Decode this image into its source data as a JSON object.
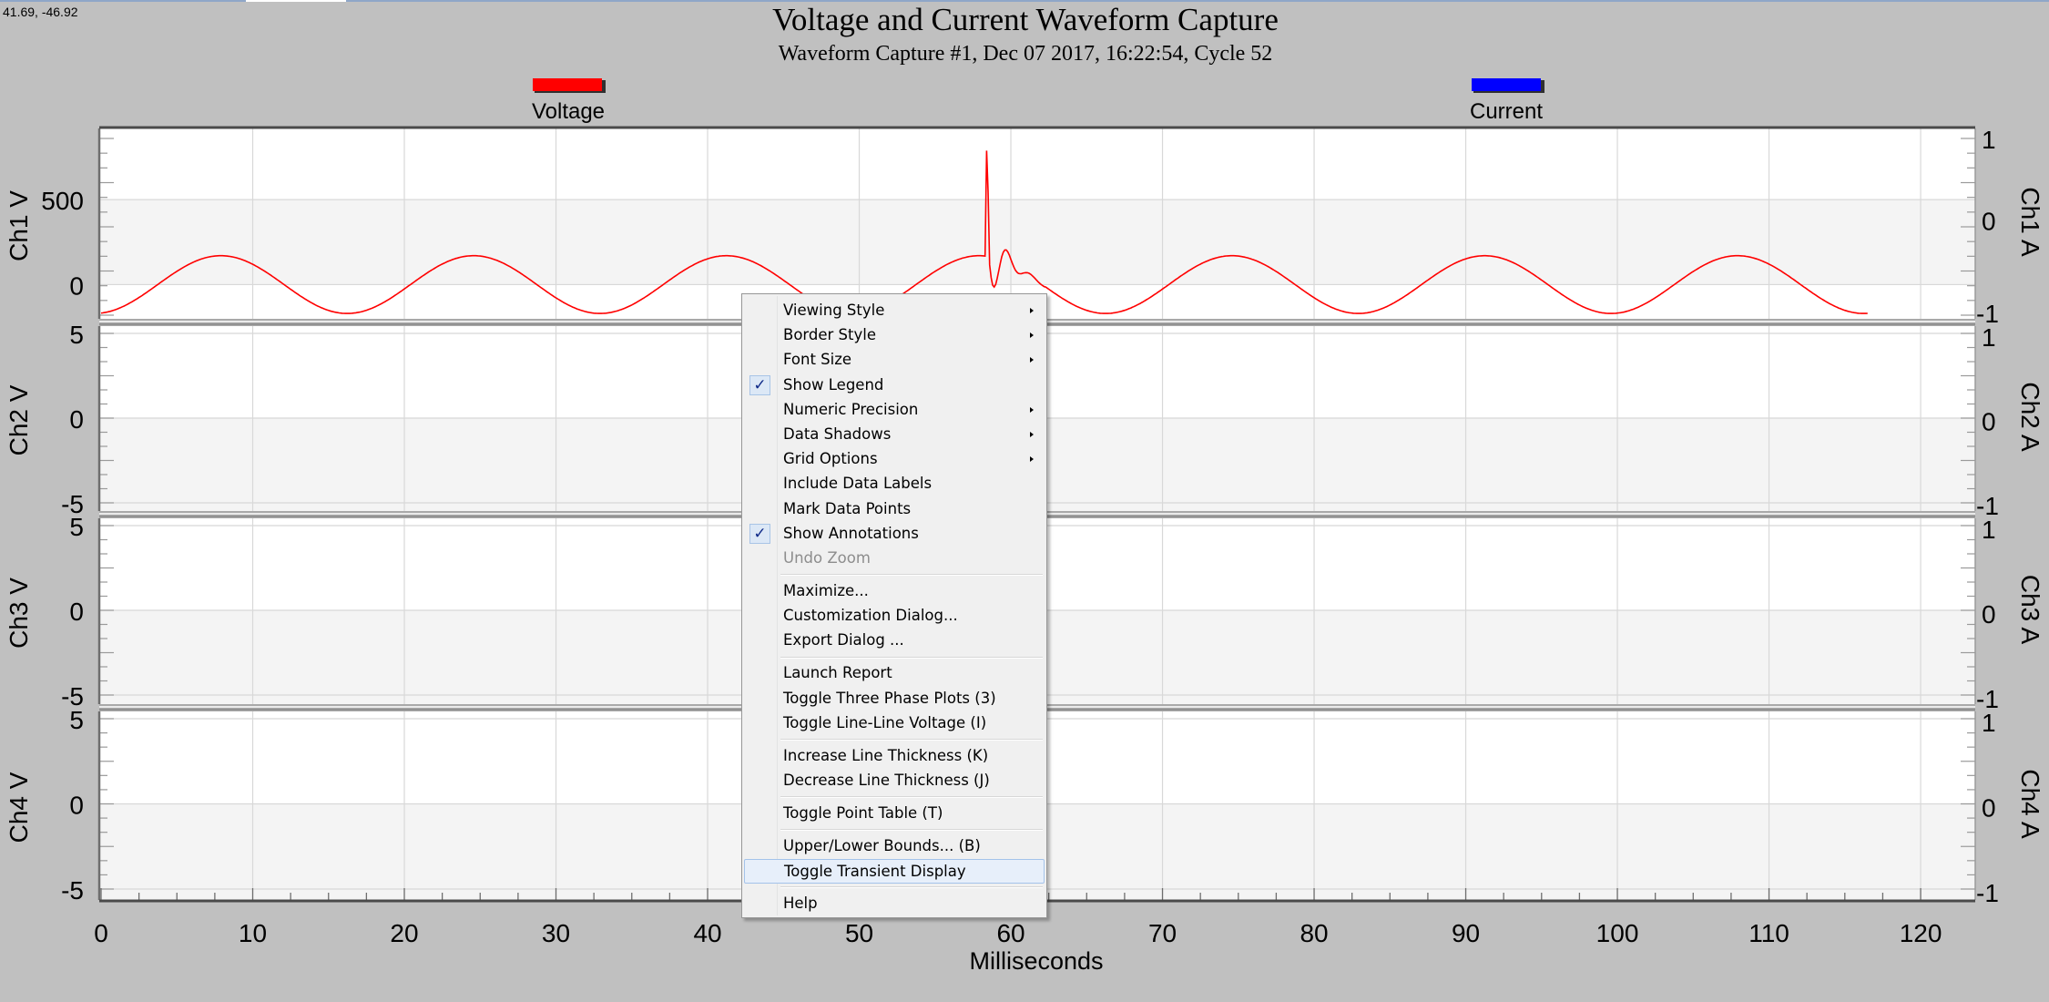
{
  "coords_readout": "41.69, -46.92",
  "colors": {
    "voltage": "#ff0000",
    "current": "#0000ff",
    "background": "#c0c0c0",
    "plot_band_light": "#ffffff",
    "plot_band_dark": "#f4f4f4",
    "grid": "#d8d8d8"
  },
  "chart_data": {
    "type": "line",
    "title": "Voltage and Current Waveform Capture",
    "subtitle": "Waveform Capture #1, Dec 07 2017, 16:22:54,  Cycle 52",
    "xlabel": "Milliseconds",
    "xlim": [
      0,
      123
    ],
    "x_ticks": [
      "0",
      "10",
      "20",
      "30",
      "40",
      "50",
      "60",
      "70",
      "80",
      "90",
      "100",
      "110",
      "120"
    ],
    "legend": [
      {
        "name": "Voltage",
        "color": "#ff0000"
      },
      {
        "name": "Current",
        "color": "#0000ff"
      }
    ],
    "legend_position": "top",
    "grid": true,
    "panels": [
      {
        "left_label": "Ch1 V",
        "right_label": "Ch1 A",
        "ylim": [
          -180,
          860
        ],
        "ytick_labels": [
          "500",
          "0"
        ],
        "ytick_values": [
          500,
          0
        ],
        "right_ylim": [
          -1,
          1
        ],
        "right_ticks": [
          "1",
          "0",
          "-1"
        ]
      },
      {
        "left_label": "Ch2 V",
        "right_label": "Ch2 A",
        "ylim": [
          -5,
          5
        ],
        "ytick_labels": [
          "5",
          "0",
          "-5"
        ],
        "ytick_values": [
          5,
          0,
          -5
        ],
        "right_ylim": [
          -1,
          1
        ],
        "right_ticks": [
          "1",
          "0",
          "-1"
        ]
      },
      {
        "left_label": "Ch3 V",
        "right_label": "Ch3 A",
        "ylim": [
          -5,
          5
        ],
        "ytick_labels": [
          "5",
          "0",
          "-5"
        ],
        "ytick_values": [
          5,
          0,
          -5
        ],
        "right_ylim": [
          -1,
          1
        ],
        "right_ticks": [
          "1",
          "0",
          "-1"
        ]
      },
      {
        "left_label": "Ch4 V",
        "right_label": "Ch4 A",
        "ylim": [
          -5,
          5
        ],
        "ytick_labels": [
          "5",
          "0",
          "-5"
        ],
        "ytick_values": [
          5,
          0,
          -5
        ],
        "right_ylim": [
          -1,
          1
        ],
        "right_ticks": [
          "1",
          "0",
          "-1"
        ]
      }
    ],
    "series": [
      {
        "name": "Voltage",
        "panel": 0,
        "color": "#ff0000",
        "waveform": "sine",
        "x_range_ms": [
          0,
          116.5
        ],
        "period_ms": 16.67,
        "peak_v": 170,
        "first_peak_ms": 7.9,
        "transient": {
          "time_ms": 58.3,
          "peak_v": 820
        }
      }
    ]
  },
  "context_menu": {
    "items": [
      {
        "label": "Viewing Style",
        "submenu": true
      },
      {
        "label": "Border Style",
        "submenu": true
      },
      {
        "label": "Font Size",
        "submenu": true
      },
      {
        "label": "Show Legend",
        "checked": true
      },
      {
        "label": "Numeric Precision",
        "submenu": true
      },
      {
        "label": "Data Shadows",
        "submenu": true
      },
      {
        "label": "Grid Options",
        "submenu": true
      },
      {
        "label": "Include Data Labels"
      },
      {
        "label": "Mark Data Points"
      },
      {
        "label": "Show Annotations",
        "checked": true
      },
      {
        "label": "Undo Zoom",
        "disabled": true
      },
      {
        "label": "Maximize..."
      },
      {
        "label": "Customization Dialog..."
      },
      {
        "label": "Export Dialog ..."
      },
      {
        "label": "Launch Report"
      },
      {
        "label": "Toggle Three Phase Plots (3)"
      },
      {
        "label": "Toggle Line-Line Voltage (I)"
      },
      {
        "label": "Increase Line Thickness (K)"
      },
      {
        "label": "Decrease Line Thickness (J)"
      },
      {
        "label": "Toggle Point Table (T)"
      },
      {
        "label": "Upper/Lower Bounds... (B)"
      },
      {
        "label": "Toggle Transient Display",
        "hover": true
      },
      {
        "label": "Help"
      }
    ]
  }
}
